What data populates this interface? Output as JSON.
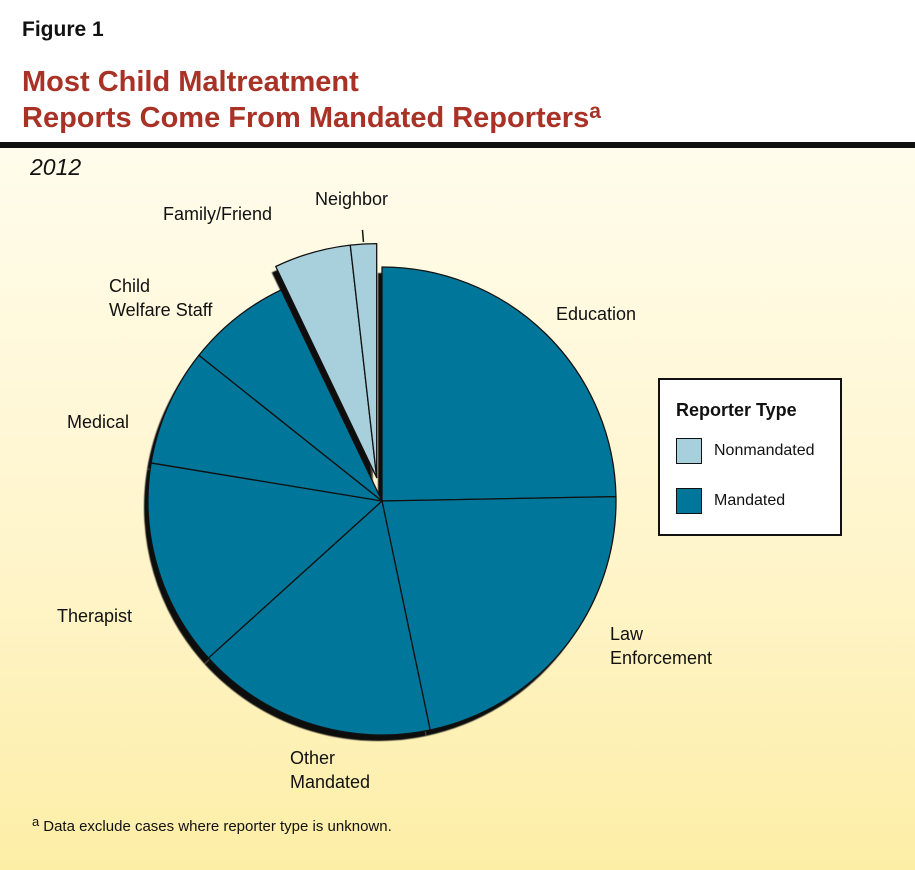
{
  "figure_label": "Figure 1",
  "title_line1": "Most Child Maltreatment",
  "title_line2": "Reports Come From Mandated Reporters",
  "title_superscript": "a",
  "subtitle": "2012",
  "legend": {
    "title": "Reporter Type",
    "items": [
      {
        "label": "Nonmandated",
        "color": "#a8cfdc"
      },
      {
        "label": "Mandated",
        "color": "#00779a"
      }
    ]
  },
  "footnote_marker": "a",
  "footnote_text": "Data exclude cases where reporter type is unknown.",
  "chart_data": {
    "type": "pie",
    "start_angle_deg": 0,
    "direction": "clockwise",
    "exploded_group": "Nonmandated",
    "slices": [
      {
        "label": "Education",
        "value": 24.7,
        "group": "Mandated"
      },
      {
        "label": "Law Enforcement",
        "value": 22.0,
        "group": "Mandated"
      },
      {
        "label": "Other Mandated",
        "value": 16.6,
        "group": "Mandated"
      },
      {
        "label": "Therapist",
        "value": 14.3,
        "group": "Mandated"
      },
      {
        "label": "Medical",
        "value": 8.1,
        "group": "Mandated"
      },
      {
        "label": "Child Welfare Staff",
        "value": 7.2,
        "group": "Mandated"
      },
      {
        "label": "Family/Friend",
        "value": 5.3,
        "group": "Nonmandated"
      },
      {
        "label": "Neighbor",
        "value": 1.8,
        "group": "Nonmandated"
      }
    ]
  }
}
